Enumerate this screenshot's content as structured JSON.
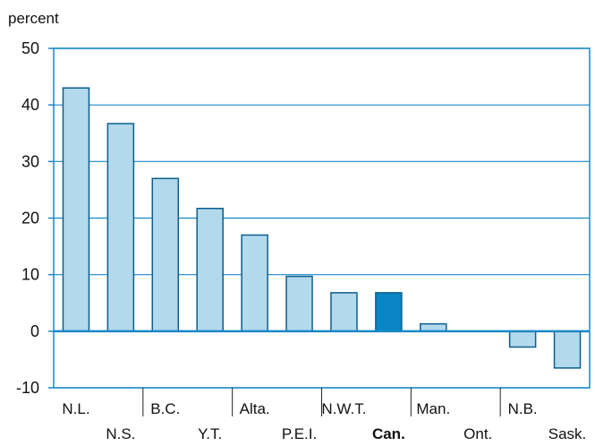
{
  "chart_data": {
    "type": "bar",
    "unit_label": "percent",
    "categories": [
      "N.L.",
      "N.S.",
      "B.C.",
      "Y.T.",
      "Alta.",
      "P.E.I.",
      "N.W.T.",
      "Can.",
      "Man.",
      "Ont.",
      "N.B.",
      "Sask."
    ],
    "values": [
      43,
      36.7,
      27,
      21.7,
      17,
      9.7,
      6.8,
      6.8,
      1.3,
      0,
      -2.8,
      -6.5
    ],
    "highlight_category": "Can.",
    "ylim": [
      -10,
      50
    ],
    "yticks": [
      "50",
      "40",
      "30",
      "20",
      "10",
      "0",
      "-10"
    ],
    "grid": true,
    "colors": {
      "bar": "#b3d9ec",
      "highlight": "#0a86c6",
      "axis": "#1a87c7",
      "bar_edge": "#0b5e8d"
    }
  }
}
